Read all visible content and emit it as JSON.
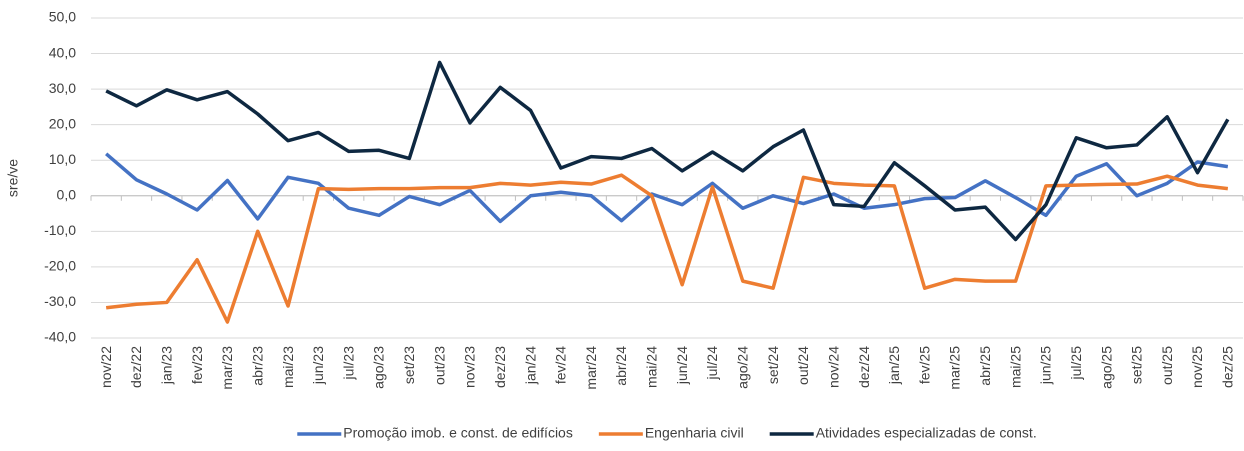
{
  "chart_data": {
    "type": "line",
    "y_label": "sre/ve",
    "categories": [
      "nov/22",
      "dez/22",
      "jan/23",
      "fev/23",
      "mar/23",
      "abr/23",
      "mai/23",
      "jun/23",
      "jul/23",
      "ago/23",
      "set/23",
      "out/23",
      "nov/23",
      "dez/23",
      "jan/24",
      "fev/24",
      "mar/24",
      "abr/24",
      "mai/24",
      "jun/24",
      "jul/24",
      "ago/24",
      "set/24",
      "out/24",
      "nov/24",
      "dez/24",
      "jan/25",
      "fev/25",
      "mar/25",
      "abr/25",
      "mai/25",
      "jun/25",
      "jul/25",
      "ago/25",
      "set/25",
      "out/25",
      "nov/25",
      "dez/25"
    ],
    "series": [
      {
        "name": "Promoção imob. e const. de edifícios",
        "color": "#4472c4",
        "values": [
          11.8,
          4.5,
          0.5,
          -4,
          4.3,
          -6.5,
          5.2,
          3.5,
          -3.5,
          -5.5,
          -0.2,
          -2.5,
          1.5,
          -7.2,
          0,
          1,
          0,
          -7,
          0.5,
          -2.5,
          3.5,
          -3.5,
          0,
          -2.2,
          0.5,
          -3.5,
          -2.5,
          -0.8,
          -0.5,
          4.2,
          -0.5,
          -5.5,
          5.5,
          9,
          0,
          3.5,
          9.5,
          8.2
        ]
      },
      {
        "name": "Engenharia civil",
        "color": "#ed7d31",
        "values": [
          -31.5,
          -30.5,
          -30,
          -18,
          -35.5,
          -10,
          -31,
          2,
          1.8,
          2,
          2,
          2.3,
          2.3,
          3.5,
          3,
          3.8,
          3.3,
          5.8,
          0,
          -25,
          2.5,
          -24,
          -26,
          5.2,
          3.5,
          3,
          2.8,
          -26,
          -23.5,
          -24,
          -24,
          2.8,
          3,
          3.2,
          3.3,
          5.5,
          3,
          2
        ]
      },
      {
        "name": "Atividades especializadas de const.",
        "color": "#0e2841",
        "values": [
          29.5,
          25.3,
          29.8,
          27,
          29.3,
          23,
          15.5,
          17.8,
          12.5,
          12.8,
          10.5,
          37.5,
          20.5,
          30.5,
          24,
          7.8,
          11,
          10.5,
          13.3,
          7,
          12.3,
          7,
          13.8,
          18.5,
          -2.5,
          -3,
          9.3,
          2.8,
          -4,
          -3.2,
          -12.3,
          -2.5,
          16.3,
          13.5,
          14.3,
          22.2,
          6.5,
          21.5
        ]
      }
    ],
    "ylim": [
      -40,
      50
    ],
    "yticks": [
      {
        "value": -40,
        "label": "-40,0"
      },
      {
        "value": -30,
        "label": "-30,0"
      },
      {
        "value": -20,
        "label": "-20,0"
      },
      {
        "value": -10,
        "label": "-10,0"
      },
      {
        "value": 0,
        "label": "0,0"
      },
      {
        "value": 10,
        "label": "10,0"
      },
      {
        "value": 20,
        "label": "20,0"
      },
      {
        "value": 30,
        "label": "30,0"
      },
      {
        "value": 40,
        "label": "40,0"
      },
      {
        "value": 50,
        "label": "50,0"
      }
    ],
    "grid": true,
    "legend": "bottom"
  }
}
